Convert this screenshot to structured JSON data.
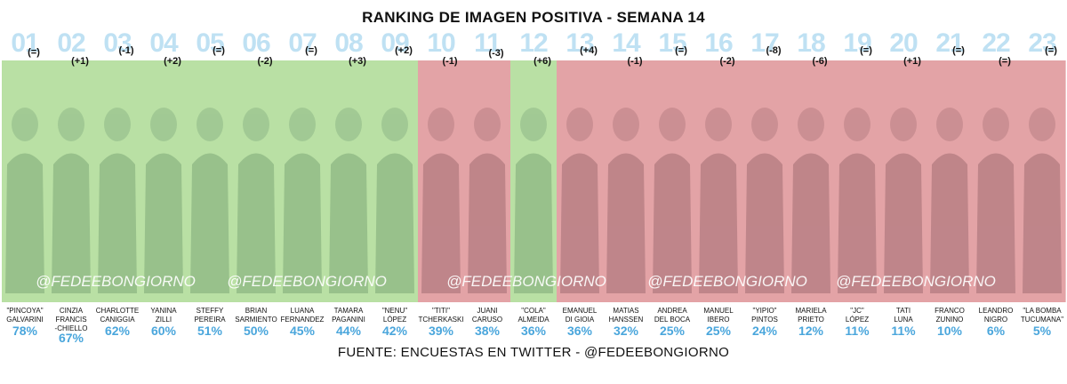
{
  "chart_data": {
    "type": "bar",
    "title": "RANKING DE IMAGEN POSITIVA - SEMANA 14",
    "source": "FUENTE: ENCUESTAS EN TWITTER - @FEDEEBONGIORNO",
    "watermark": "@FEDEEBONGIORNO",
    "colors": {
      "positive": "#b9e0a4",
      "negative": "#e3a3a6",
      "rank": "#bfe1f3",
      "value": "#4aa6dc"
    },
    "items": [
      {
        "rank": "01",
        "change": "(=)",
        "name": [
          "\"PINCOYA\"",
          "GALVARINI"
        ],
        "value": 78,
        "label": "78%",
        "sentiment": "positive"
      },
      {
        "rank": "02",
        "change": "(+1)",
        "name": [
          "CINZIA",
          "FRANCIS",
          "-CHIELLO"
        ],
        "value": 67,
        "label": "67%",
        "sentiment": "positive"
      },
      {
        "rank": "03",
        "change": "(-1)",
        "name": [
          "CHARLOTTE",
          "CANIGGIA"
        ],
        "value": 62,
        "label": "62%",
        "sentiment": "positive"
      },
      {
        "rank": "04",
        "change": "(+2)",
        "name": [
          "YANINA",
          "ZILLI"
        ],
        "value": 60,
        "label": "60%",
        "sentiment": "positive"
      },
      {
        "rank": "05",
        "change": "(=)",
        "name": [
          "STEFFY",
          "PEREIRA"
        ],
        "value": 51,
        "label": "51%",
        "sentiment": "positive"
      },
      {
        "rank": "06",
        "change": "(-2)",
        "name": [
          "BRIAN",
          "SARMIENTO"
        ],
        "value": 50,
        "label": "50%",
        "sentiment": "positive"
      },
      {
        "rank": "07",
        "change": "(=)",
        "name": [
          "LUANA",
          "FERNANDEZ"
        ],
        "value": 45,
        "label": "45%",
        "sentiment": "positive"
      },
      {
        "rank": "08",
        "change": "(+3)",
        "name": [
          "TAMARA",
          "PAGANINI"
        ],
        "value": 44,
        "label": "44%",
        "sentiment": "positive"
      },
      {
        "rank": "09",
        "change": "(+2)",
        "name": [
          "\"NENU\"",
          "LÓPEZ"
        ],
        "value": 42,
        "label": "42%",
        "sentiment": "positive"
      },
      {
        "rank": "10",
        "change": "(-1)",
        "name": [
          "\"TITI\"",
          "TCHERKASKI"
        ],
        "value": 39,
        "label": "39%",
        "sentiment": "negative"
      },
      {
        "rank": "11",
        "change": "(-3)",
        "name": [
          "JUANI",
          "CARUSO"
        ],
        "value": 38,
        "label": "38%",
        "sentiment": "negative"
      },
      {
        "rank": "12",
        "change": "(+6)",
        "name": [
          "\"COLA\"",
          "ALMEIDA"
        ],
        "value": 36,
        "label": "36%",
        "sentiment": "positive"
      },
      {
        "rank": "13",
        "change": "(+4)",
        "name": [
          "EMANUEL",
          "DI GIOIA"
        ],
        "value": 36,
        "label": "36%",
        "sentiment": "negative"
      },
      {
        "rank": "14",
        "change": "(-1)",
        "name": [
          "MATIAS",
          "HANSSEN"
        ],
        "value": 32,
        "label": "32%",
        "sentiment": "negative"
      },
      {
        "rank": "15",
        "change": "(=)",
        "name": [
          "ANDREA",
          "DEL BOCA"
        ],
        "value": 25,
        "label": "25%",
        "sentiment": "negative"
      },
      {
        "rank": "16",
        "change": "(-2)",
        "name": [
          "MANUEL",
          "IBERO"
        ],
        "value": 25,
        "label": "25%",
        "sentiment": "negative"
      },
      {
        "rank": "17",
        "change": "(-8)",
        "name": [
          "\"YIPIO\"",
          "PINTOS"
        ],
        "value": 24,
        "label": "24%",
        "sentiment": "negative"
      },
      {
        "rank": "18",
        "change": "(-6)",
        "name": [
          "MARIELA",
          "PRIETO"
        ],
        "value": 12,
        "label": "12%",
        "sentiment": "negative"
      },
      {
        "rank": "19",
        "change": "(=)",
        "name": [
          "\"JC\"",
          "LÓPEZ"
        ],
        "value": 11,
        "label": "11%",
        "sentiment": "negative"
      },
      {
        "rank": "20",
        "change": "(+1)",
        "name": [
          "TATI",
          "LUNA"
        ],
        "value": 11,
        "label": "11%",
        "sentiment": "negative"
      },
      {
        "rank": "21",
        "change": "(=)",
        "name": [
          "FRANCO",
          "ZUNINO"
        ],
        "value": 10,
        "label": "10%",
        "sentiment": "negative"
      },
      {
        "rank": "22",
        "change": "(=)",
        "name": [
          "LEANDRO",
          "NIGRO"
        ],
        "value": 6,
        "label": "6%",
        "sentiment": "negative"
      },
      {
        "rank": "23",
        "change": "(=)",
        "name": [
          "\"LA BOMBA",
          "TUCUMANA\""
        ],
        "value": 5,
        "label": "5%",
        "sentiment": "negative"
      }
    ]
  }
}
